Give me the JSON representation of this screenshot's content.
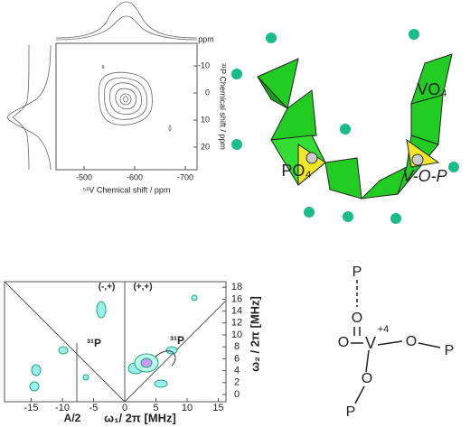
{
  "nmr_panel": {
    "x_ticks": [
      -500,
      -600,
      -700
    ],
    "y_ticks": [
      -10,
      0,
      10,
      20
    ],
    "y_unit": "ppm",
    "y_label": "³¹P Chemical shift / ppm",
    "x_label": "⁵¹V Chemical shift / ppm"
  },
  "structure_panel": {
    "labels": [
      "VO₄",
      "PO₄",
      "V-O-P"
    ]
  },
  "hyscore_panel": {
    "x_ticks": [
      -15,
      -10,
      -5,
      0,
      5,
      10,
      15
    ],
    "y_ticks": [
      0,
      2,
      4,
      6,
      8,
      10,
      12,
      14,
      16,
      18
    ],
    "quadrant_labels": [
      "(-,+)",
      "(+,+)"
    ],
    "peak_labels": [
      "³¹P",
      "³¹P"
    ],
    "x_marker_label": "A/2",
    "x_label": "ω₁/ 2π [MHz]",
    "y_label": "ω₂ / 2π [MHz]"
  },
  "molecule": {
    "atoms": [
      "P",
      "O",
      "V",
      "+4",
      "O",
      "O",
      "P",
      "O",
      "P"
    ]
  }
}
